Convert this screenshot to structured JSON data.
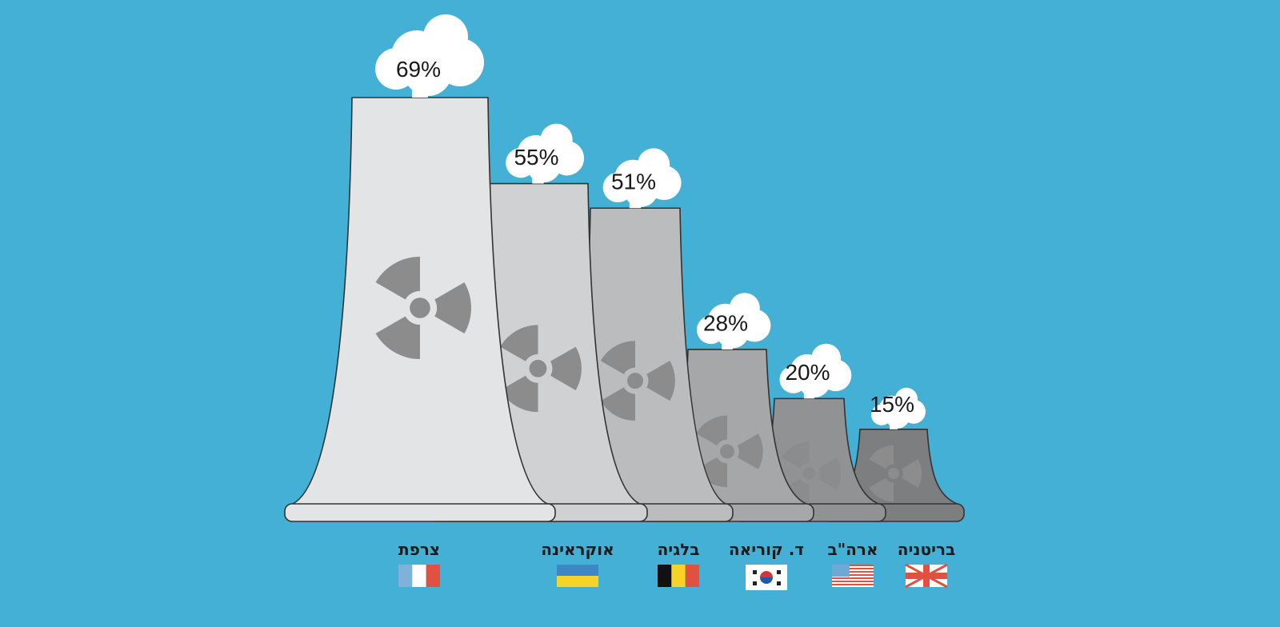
{
  "chart_data": {
    "type": "bar",
    "categories": [
      "צרפת",
      "אוקראינה",
      "בלגיה",
      "ד. קוריאה",
      "ארה\"ב",
      "בריטניה"
    ],
    "values": [
      69,
      55,
      51,
      28,
      20,
      15
    ],
    "value_labels": [
      "69%",
      "55%",
      "51%",
      "28%",
      "20%",
      "15%"
    ],
    "flags": [
      "france-flag",
      "ukraine-flag",
      "belgium-flag",
      "south-korea-flag",
      "usa-flag",
      "uk-flag"
    ],
    "tower_colors": [
      "#e3e4e6",
      "#d0d1d3",
      "#bbbcbe",
      "#a6a7a9",
      "#919294",
      "#7d7e80"
    ],
    "title": "",
    "xlabel": "",
    "ylabel": "",
    "ylim": [
      0,
      69
    ]
  },
  "colors": {
    "background": "#45b0d6",
    "cloud": "#ffffff",
    "symbol": "#8c8c8c",
    "outline": "#333333"
  }
}
